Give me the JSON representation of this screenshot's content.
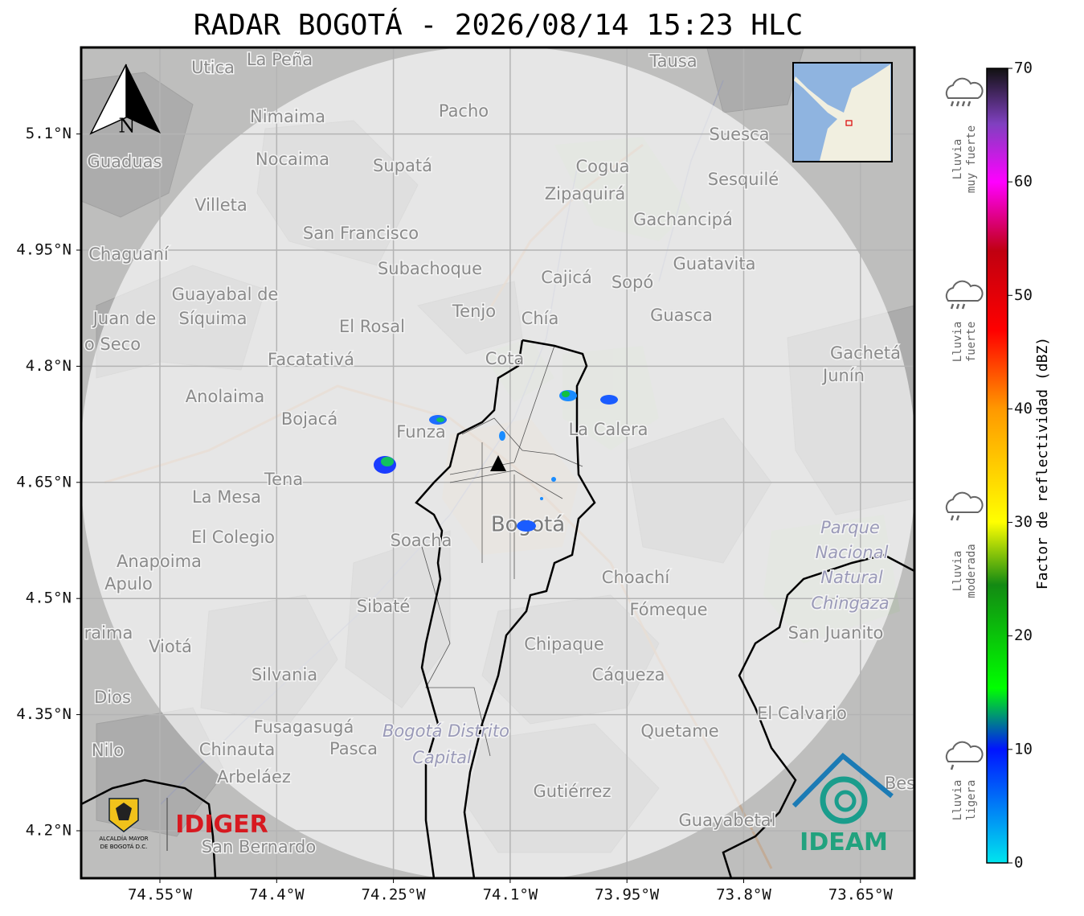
{
  "title": "RADAR BOGOTÁ - 2026/08/14 15:23 HLC",
  "map": {
    "compass": "N",
    "lat_ticks": [
      {
        "value": 5.1,
        "label": "5.1°N"
      },
      {
        "value": 4.95,
        "label": "4.95°N"
      },
      {
        "value": 4.8,
        "label": "4.8°N"
      },
      {
        "value": 4.65,
        "label": "4.65°N"
      },
      {
        "value": 4.5,
        "label": "4.5°N"
      },
      {
        "value": 4.35,
        "label": "4.35°N"
      },
      {
        "value": 4.2,
        "label": "4.2°N"
      }
    ],
    "lon_ticks": [
      {
        "value": 74.55,
        "label": "74.55°W"
      },
      {
        "value": 74.4,
        "label": "74.4°W"
      },
      {
        "value": 74.25,
        "label": "74.25°W"
      },
      {
        "value": 74.1,
        "label": "74.1°W"
      },
      {
        "value": 73.95,
        "label": "73.95°W"
      },
      {
        "value": 73.8,
        "label": "73.8°W"
      },
      {
        "value": 73.65,
        "label": "73.65°W"
      }
    ],
    "places": [
      "La Peña",
      "Utica",
      "Tausa",
      "Pacho",
      "Nimaima",
      "Suesca",
      "Guaduas",
      "Nocaima",
      "Supatá",
      "Cogua",
      "Zipaquirá",
      "Sesquilé",
      "Villeta",
      "San Francisco",
      "Gachancipá",
      "Chaguaní",
      "Guatavita",
      "Subachoque",
      "Cajicá",
      "Sopó",
      "Guayabal de",
      "Síquima",
      "Juan de",
      "o Seco",
      "Tenjo",
      "Chía",
      "Guasca",
      "El Rosal",
      "Facatativá",
      "Cota",
      "Gachetá",
      "Junín",
      "Anolaima",
      "Bojacá",
      "Funza",
      "La Calera",
      "Tena",
      "La Mesa",
      "Bogotá",
      "Parque",
      "Nacional",
      "Natural",
      "Chingaza",
      "El Colegio",
      "Soacha",
      "Anapoima",
      "Apulo",
      "Choachí",
      "Sibaté",
      "Fómeque",
      "San Juanito",
      "Viotá",
      "Chipaque",
      "Silvania",
      "Cáqueza",
      "Dios",
      "El Calvario",
      "Fusagasugá",
      "Bogotá Distrito",
      "Capital",
      "Quetame",
      "Nilo",
      "Chinauta",
      "Pasca",
      "Arbeláez",
      "Gutiérrez",
      "Guayabetal",
      "San Bernardo",
      "raima",
      "Bes"
    ]
  },
  "logos": {
    "alcaldia": [
      "ALCALDÍA MAYOR",
      "DE BOGOTÁ D.C."
    ],
    "idiger": "IDIGER",
    "ideam": "IDEAM"
  },
  "colorbar": {
    "label": "Factor de reflectividad (dBZ)",
    "lim": [
      0,
      70
    ],
    "ticks": [
      0,
      10,
      20,
      30,
      40,
      50,
      60,
      70
    ]
  },
  "rain_levels": [
    [
      "Lluvia",
      "muy fuerte"
    ],
    [
      "Lluvia",
      "fuerte"
    ],
    [
      "Lluvia",
      "moderada"
    ],
    [
      "Lluvia",
      "ligera"
    ]
  ]
}
